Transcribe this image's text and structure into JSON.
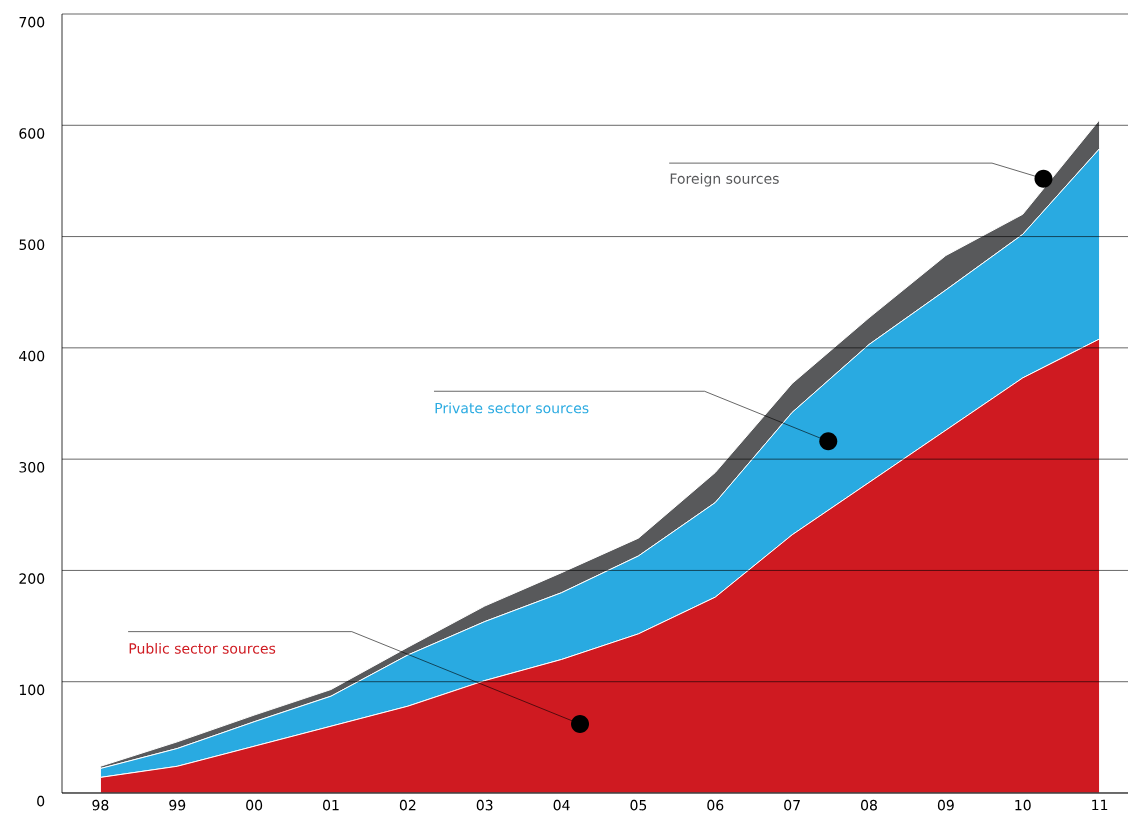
{
  "chart_data": {
    "type": "area",
    "stacked": true,
    "categories": [
      "98",
      "99",
      "00",
      "01",
      "02",
      "03",
      "04",
      "05",
      "06",
      "07",
      "08",
      "09",
      "10",
      "11"
    ],
    "series": [
      {
        "name": "Public sector sources",
        "color": "#cf1a21",
        "values": [
          14,
          24,
          42,
          60,
          78,
          101,
          120,
          143,
          176,
          232,
          279,
          326,
          373,
          408
        ]
      },
      {
        "name": "Private sector sources",
        "color": "#29aae1",
        "values": [
          8,
          16,
          22,
          27,
          46,
          53,
          60,
          70,
          85,
          110,
          124,
          126,
          129,
          171
        ]
      },
      {
        "name": "Foreign sources",
        "color": "#58595b",
        "values": [
          2,
          6,
          6,
          6,
          7,
          14,
          18,
          16,
          27,
          26,
          24,
          31,
          18,
          26
        ]
      }
    ],
    "ylim": [
      0,
      700
    ],
    "yticks": [
      0,
      100,
      200,
      300,
      400,
      500,
      600,
      700
    ],
    "grid": "y"
  }
}
